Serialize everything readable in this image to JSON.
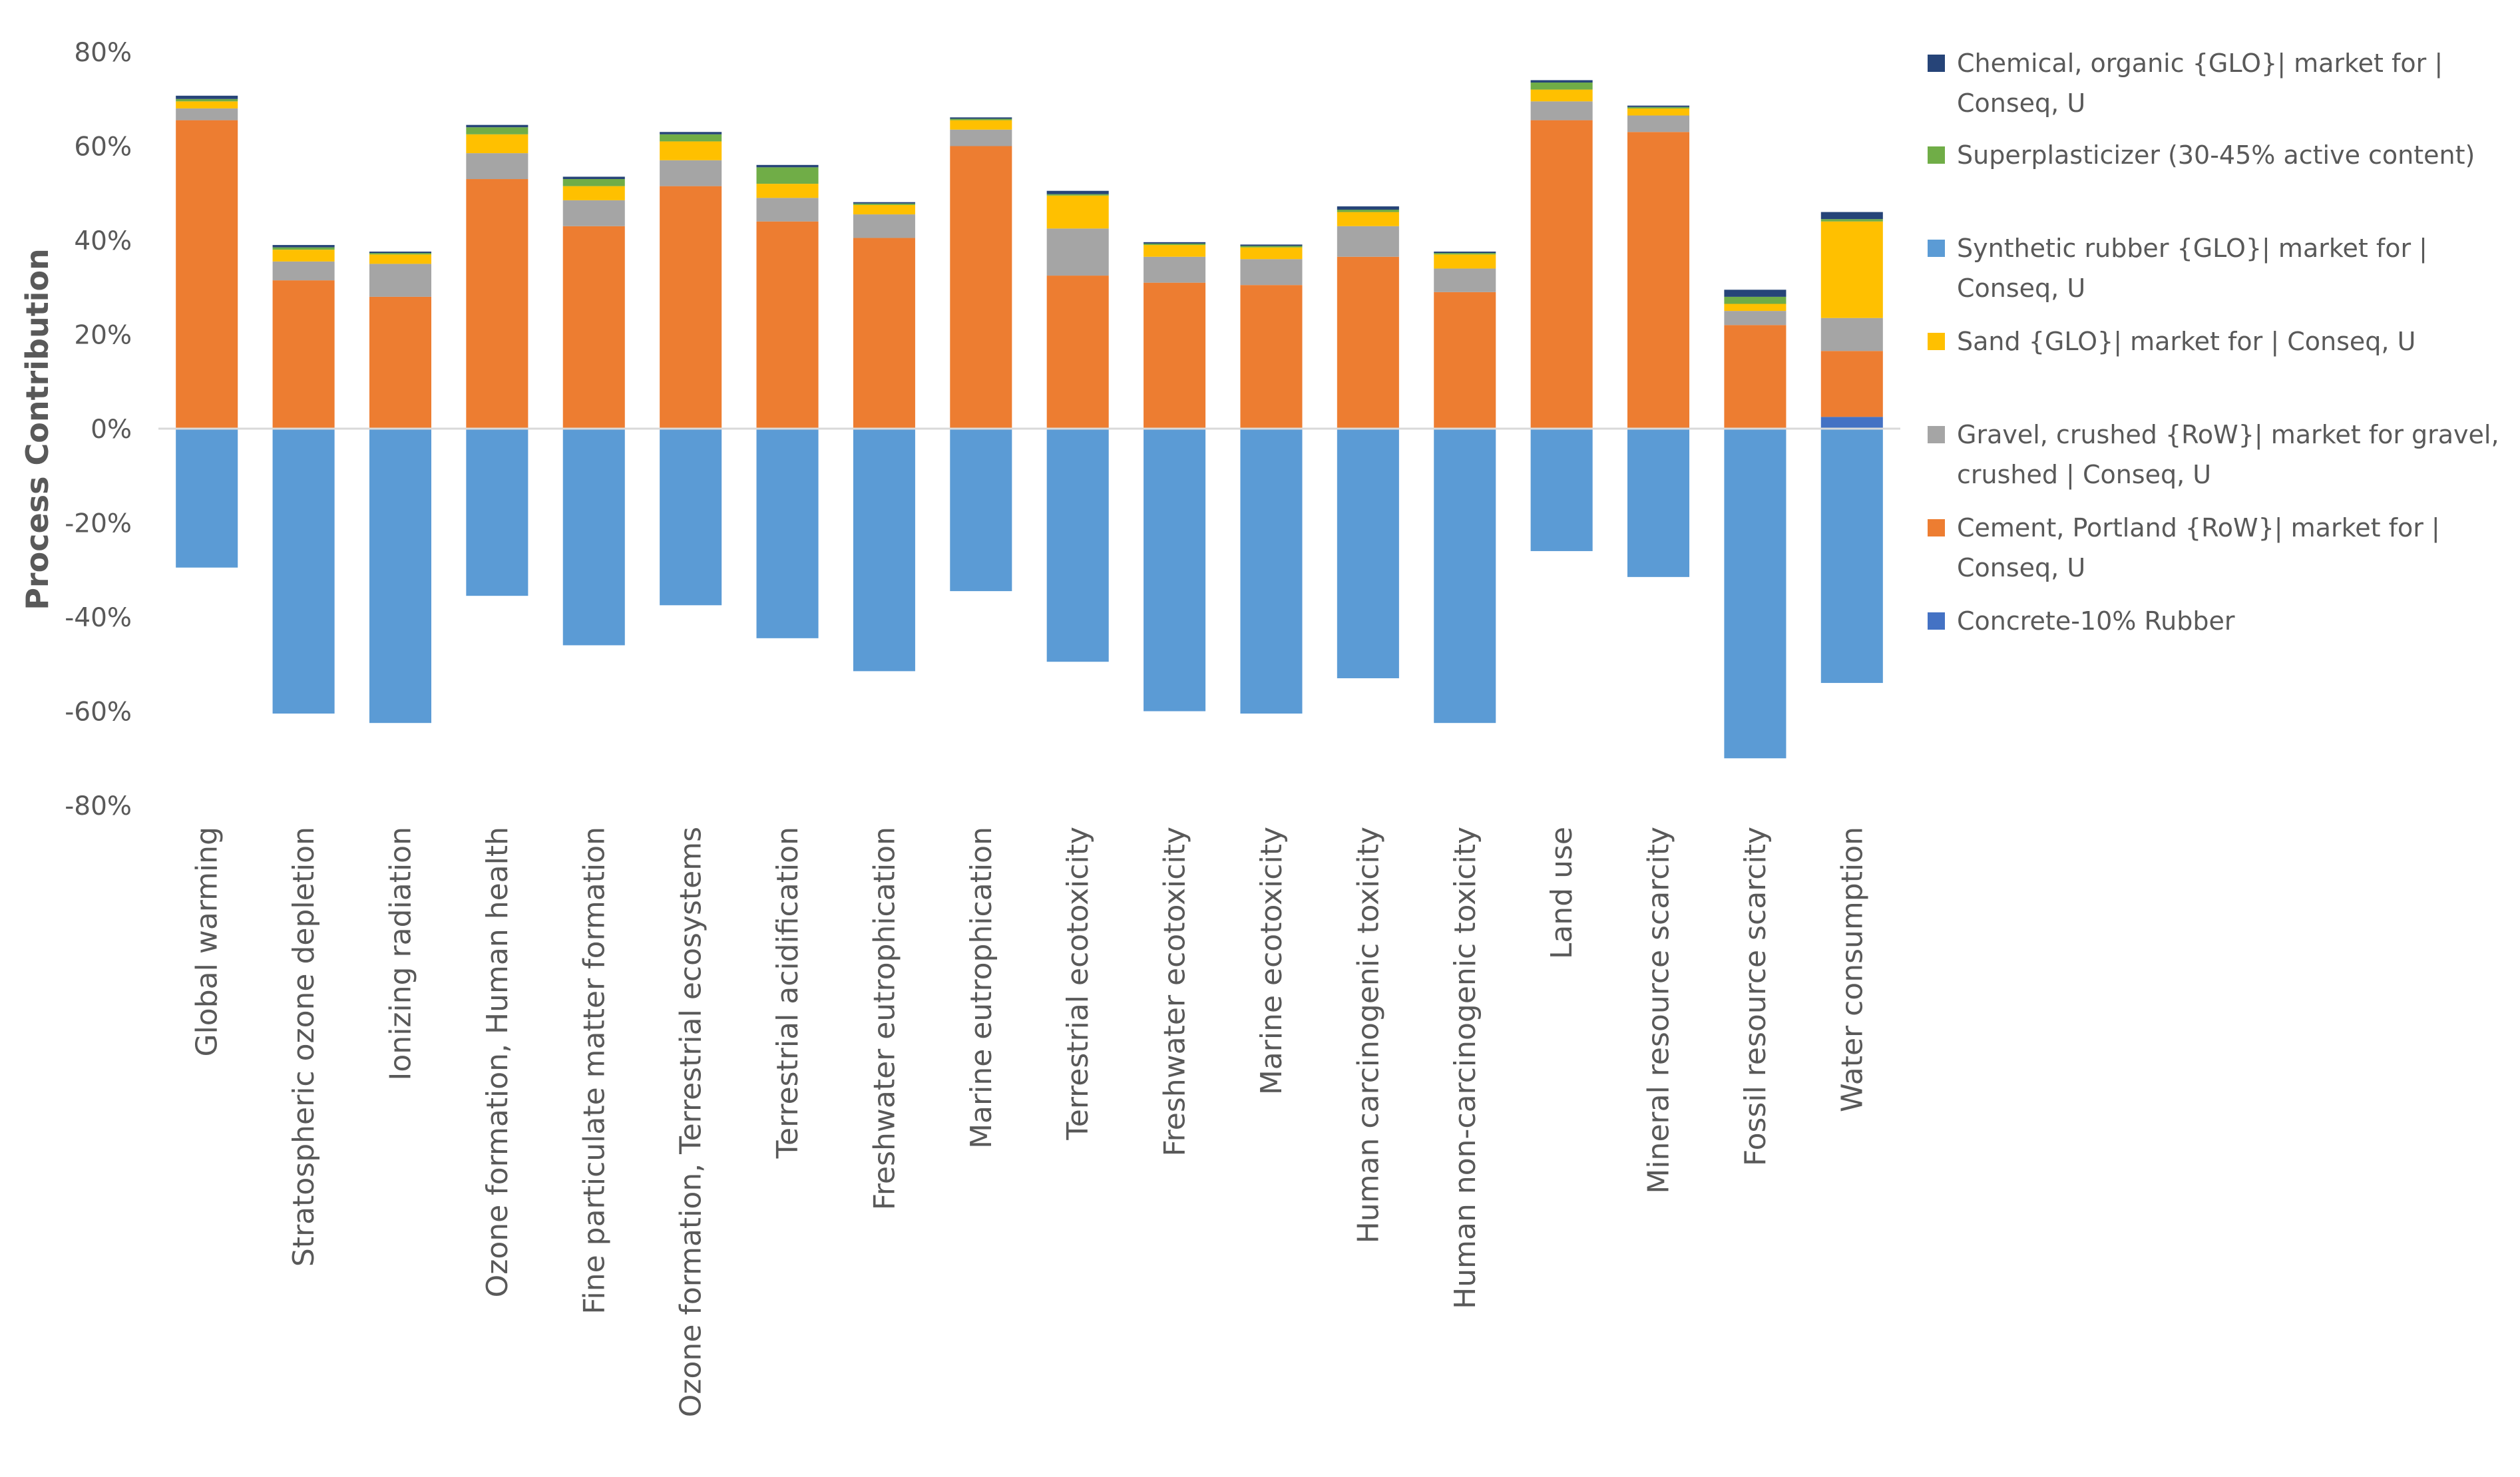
{
  "chart_data": {
    "type": "bar",
    "stacked": true,
    "title": "",
    "xlabel": "",
    "ylabel": "Process Contribution",
    "ylim": [
      -80,
      80
    ],
    "y_ticks": [
      80,
      60,
      40,
      20,
      0,
      -20,
      -40,
      -60,
      -80
    ],
    "y_tick_labels": [
      "80%",
      "60%",
      "40%",
      "20%",
      "0%",
      "-20%",
      "-40%",
      "-60%",
      "-80%"
    ],
    "legend_position": "right",
    "grid": false,
    "categories": [
      "Global warming",
      "Stratospheric ozone depletion",
      "Ionizing radiation",
      "Ozone formation, Human health",
      "Fine particulate matter formation",
      "Ozone formation, Terrestrial ecosystems",
      "Terrestrial acidification",
      "Freshwater eutrophication",
      "Marine eutrophication",
      "Terrestrial ecotoxicity",
      "Freshwater ecotoxicity",
      "Marine ecotoxicity",
      "Human carcinogenic toxicity",
      "Human non-carcinogenic toxicity",
      "Land use",
      "Mineral resource scarcity",
      "Fossil resource scarcity",
      "Water consumption"
    ],
    "series": [
      {
        "name": "Concrete-10% Rubber",
        "color": "#4472C4",
        "values": [
          0,
          0,
          0,
          0,
          0,
          0,
          0,
          0,
          0,
          0,
          0,
          0,
          0,
          0,
          0,
          0,
          0,
          2.5
        ]
      },
      {
        "name": "Cement, Portland {RoW}| market for | Conseq, U",
        "color": "#ED7D31",
        "values": [
          65.5,
          31.5,
          28,
          53,
          43,
          51.5,
          44,
          40.5,
          60,
          32.5,
          31,
          30.5,
          36.5,
          29,
          65.5,
          63,
          22,
          14
        ]
      },
      {
        "name": "Gravel, crushed {RoW}| market for gravel, crushed | Conseq, U",
        "color": "#A5A5A5",
        "values": [
          2.5,
          4,
          7,
          5.5,
          5.5,
          5.5,
          5,
          5,
          3.5,
          10,
          5.5,
          5.5,
          6.5,
          5,
          4,
          3.5,
          3,
          7
        ]
      },
      {
        "name": "Sand {GLO}| market for | Conseq, U",
        "color": "#FFC000",
        "values": [
          1.5,
          2.5,
          2,
          4,
          3,
          4,
          3,
          2,
          2,
          7,
          2.5,
          2.5,
          3,
          3,
          2.5,
          1.5,
          1.5,
          20.5
        ]
      },
      {
        "name": "Superplasticizer (30-45% active content)",
        "color": "#70AD47",
        "values": [
          0.5,
          0.5,
          0.3,
          1.5,
          1.5,
          1.5,
          3.5,
          0.3,
          0.3,
          0.3,
          0.3,
          0.3,
          0.5,
          0.3,
          1.5,
          0.3,
          1.5,
          0.5
        ]
      },
      {
        "name": "Chemical, organic {GLO}| market for | Conseq, U",
        "color": "#264478",
        "values": [
          0.7,
          0.5,
          0.3,
          0.5,
          0.5,
          0.5,
          0.5,
          0.3,
          0.3,
          0.7,
          0.3,
          0.3,
          0.7,
          0.3,
          0.5,
          0.3,
          1.5,
          1.5
        ]
      },
      {
        "name": "Synthetic rubber {GLO}| market for | Conseq, U",
        "color": "#5B9BD5",
        "values": [
          -29.5,
          -60.5,
          -62.5,
          -35.5,
          -46,
          -37.5,
          -44.5,
          -51.5,
          -34.5,
          -49.5,
          -60,
          -60.5,
          -53,
          -62.5,
          -26,
          -31.5,
          -70,
          -54
        ]
      }
    ],
    "legend": [
      {
        "series": 5,
        "lines": [
          "Chemical, organic {GLO}| market for |",
          "Conseq, U"
        ]
      },
      {
        "series": 4,
        "lines": [
          "Superplasticizer (30-45% active content)"
        ]
      },
      {
        "series": 6,
        "lines": [
          "Synthetic rubber {GLO}| market for |",
          "Conseq, U"
        ]
      },
      {
        "series": 3,
        "lines": [
          "Sand {GLO}| market for | Conseq, U"
        ]
      },
      {
        "series": 2,
        "lines": [
          "Gravel, crushed {RoW}| market for gravel,",
          "crushed | Conseq, U"
        ]
      },
      {
        "series": 1,
        "lines": [
          "Cement, Portland {RoW}| market for |",
          "Conseq, U"
        ]
      },
      {
        "series": 0,
        "lines": [
          "Concrete-10% Rubber"
        ]
      }
    ]
  }
}
